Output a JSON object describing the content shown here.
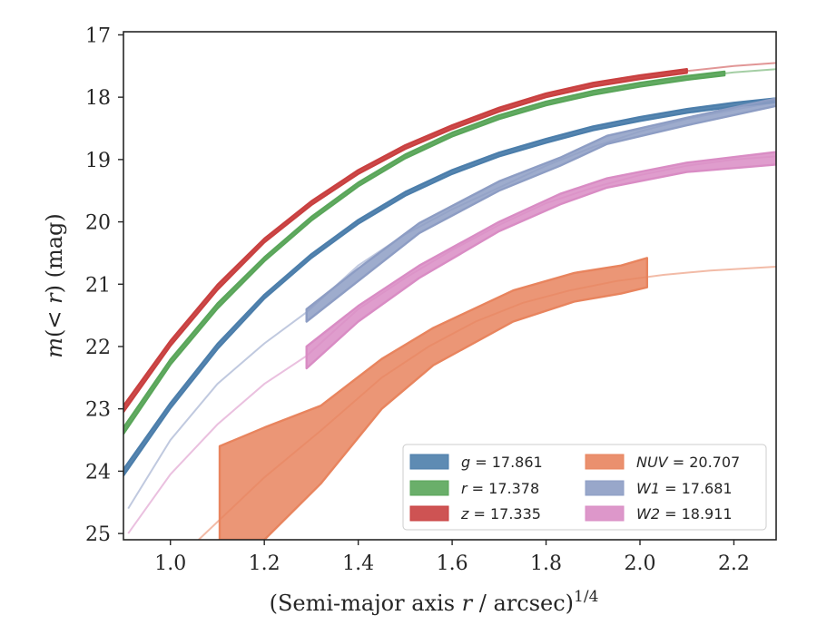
{
  "chart_data": {
    "type": "line",
    "xlabel": "(Semi-major axis r / arcsec)",
    "xlabel_exponent": "1/4",
    "ylabel": "m(<r) (mag)",
    "xlim": [
      0.9,
      2.29
    ],
    "ylim": [
      25.1,
      16.95
    ],
    "y_inverted": true,
    "grid": false,
    "legend_position": "lower-right",
    "x_ticks": [
      "1.0",
      "1.2",
      "1.4",
      "1.6",
      "1.8",
      "2.0",
      "2.2"
    ],
    "x_tick_values": [
      1.0,
      1.2,
      1.4,
      1.6,
      1.8,
      2.0,
      2.2
    ],
    "y_ticks": [
      "17",
      "18",
      "19",
      "20",
      "21",
      "22",
      "23",
      "24",
      "25"
    ],
    "y_tick_values": [
      17,
      18,
      19,
      20,
      21,
      22,
      23,
      24,
      25
    ],
    "series": [
      {
        "name": "g = 17.861",
        "symbol": "g",
        "value": "17.861",
        "color": "#4c7eab",
        "fit_x": [
          0.9,
          1.0,
          1.1,
          1.2,
          1.3,
          1.4,
          1.5,
          1.6,
          1.7,
          1.8,
          1.9,
          2.0,
          2.1,
          2.2,
          2.29
        ],
        "fit_y": [
          24.02,
          22.95,
          22.0,
          21.2,
          20.55,
          20.0,
          19.55,
          19.2,
          18.92,
          18.7,
          18.5,
          18.35,
          18.22,
          18.12,
          18.05
        ],
        "band": [
          {
            "x": 0.9,
            "lo": 23.97,
            "hi": 24.07
          },
          {
            "x": 1.0,
            "lo": 22.91,
            "hi": 22.99
          },
          {
            "x": 1.1,
            "lo": 21.96,
            "hi": 22.04
          },
          {
            "x": 1.2,
            "lo": 21.17,
            "hi": 21.23
          },
          {
            "x": 1.3,
            "lo": 20.52,
            "hi": 20.58
          },
          {
            "x": 1.4,
            "lo": 19.97,
            "hi": 20.03
          },
          {
            "x": 1.5,
            "lo": 19.52,
            "hi": 19.58
          },
          {
            "x": 1.6,
            "lo": 19.17,
            "hi": 19.23
          },
          {
            "x": 1.7,
            "lo": 18.89,
            "hi": 18.95
          },
          {
            "x": 1.8,
            "lo": 18.67,
            "hi": 18.73
          },
          {
            "x": 1.9,
            "lo": 18.47,
            "hi": 18.53
          },
          {
            "x": 2.0,
            "lo": 18.32,
            "hi": 18.38
          },
          {
            "x": 2.1,
            "lo": 18.19,
            "hi": 18.25
          },
          {
            "x": 2.2,
            "lo": 18.09,
            "hi": 18.15
          },
          {
            "x": 2.29,
            "lo": 18.02,
            "hi": 18.08
          }
        ]
      },
      {
        "name": "r = 17.378",
        "symbol": "r",
        "value": "17.378",
        "color": "#5aa65a",
        "fit_x": [
          0.9,
          1.0,
          1.1,
          1.2,
          1.3,
          1.4,
          1.5,
          1.6,
          1.7,
          1.8,
          1.9,
          2.0,
          2.1,
          2.2,
          2.29
        ],
        "fit_y": [
          23.35,
          22.25,
          21.35,
          20.6,
          19.95,
          19.4,
          18.95,
          18.6,
          18.32,
          18.1,
          17.93,
          17.8,
          17.69,
          17.6,
          17.55
        ],
        "band": [
          {
            "x": 0.9,
            "lo": 23.3,
            "hi": 23.4
          },
          {
            "x": 1.0,
            "lo": 22.21,
            "hi": 22.29
          },
          {
            "x": 1.1,
            "lo": 21.31,
            "hi": 21.39
          },
          {
            "x": 1.2,
            "lo": 20.57,
            "hi": 20.63
          },
          {
            "x": 1.3,
            "lo": 19.92,
            "hi": 19.98
          },
          {
            "x": 1.4,
            "lo": 19.37,
            "hi": 19.43
          },
          {
            "x": 1.5,
            "lo": 18.92,
            "hi": 18.98
          },
          {
            "x": 1.6,
            "lo": 18.57,
            "hi": 18.63
          },
          {
            "x": 1.7,
            "lo": 18.29,
            "hi": 18.35
          },
          {
            "x": 1.8,
            "lo": 18.07,
            "hi": 18.13
          },
          {
            "x": 1.9,
            "lo": 17.9,
            "hi": 17.96
          },
          {
            "x": 2.0,
            "lo": 17.77,
            "hi": 17.83
          },
          {
            "x": 2.1,
            "lo": 17.66,
            "hi": 17.72
          },
          {
            "x": 2.18,
            "lo": 17.59,
            "hi": 17.65
          }
        ]
      },
      {
        "name": "z = 17.335",
        "symbol": "z",
        "value": "17.335",
        "color": "#c94040",
        "fit_x": [
          0.9,
          1.0,
          1.1,
          1.2,
          1.3,
          1.4,
          1.5,
          1.6,
          1.7,
          1.8,
          1.9,
          2.0,
          2.1,
          2.2,
          2.29
        ],
        "fit_y": [
          23.0,
          21.95,
          21.05,
          20.3,
          19.7,
          19.2,
          18.8,
          18.48,
          18.2,
          17.97,
          17.8,
          17.68,
          17.58,
          17.5,
          17.45
        ],
        "band": [
          {
            "x": 0.9,
            "lo": 22.95,
            "hi": 23.05
          },
          {
            "x": 1.0,
            "lo": 21.91,
            "hi": 21.99
          },
          {
            "x": 1.1,
            "lo": 21.01,
            "hi": 21.09
          },
          {
            "x": 1.2,
            "lo": 20.27,
            "hi": 20.33
          },
          {
            "x": 1.3,
            "lo": 19.67,
            "hi": 19.73
          },
          {
            "x": 1.4,
            "lo": 19.17,
            "hi": 19.23
          },
          {
            "x": 1.5,
            "lo": 18.77,
            "hi": 18.83
          },
          {
            "x": 1.6,
            "lo": 18.45,
            "hi": 18.51
          },
          {
            "x": 1.7,
            "lo": 18.17,
            "hi": 18.23
          },
          {
            "x": 1.8,
            "lo": 17.94,
            "hi": 18.0
          },
          {
            "x": 1.9,
            "lo": 17.77,
            "hi": 17.83
          },
          {
            "x": 2.0,
            "lo": 17.65,
            "hi": 17.71
          },
          {
            "x": 2.1,
            "lo": 17.55,
            "hi": 17.61
          }
        ]
      },
      {
        "name": "NUV = 20.707",
        "symbol": "NUV",
        "value": "20.707",
        "color": "#e8845e",
        "fit_x": [
          1.06,
          1.2,
          1.32,
          1.45,
          1.55,
          1.65,
          1.75,
          1.85,
          1.95,
          2.05,
          2.15,
          2.29
        ],
        "fit_y": [
          25.1,
          24.1,
          23.35,
          22.5,
          22.0,
          21.6,
          21.3,
          21.1,
          20.95,
          20.85,
          20.78,
          20.72
        ],
        "band": [
          {
            "x": 1.105,
            "lo": 23.6,
            "hi": 25.1
          },
          {
            "x": 1.2,
            "lo": 23.3,
            "hi": 25.1
          },
          {
            "x": 1.32,
            "lo": 22.95,
            "hi": 24.2
          },
          {
            "x": 1.45,
            "lo": 22.2,
            "hi": 23.0
          },
          {
            "x": 1.56,
            "lo": 21.7,
            "hi": 22.3
          },
          {
            "x": 1.73,
            "lo": 21.1,
            "hi": 21.6
          },
          {
            "x": 1.86,
            "lo": 20.82,
            "hi": 21.28
          },
          {
            "x": 1.96,
            "lo": 20.7,
            "hi": 21.15
          },
          {
            "x": 2.015,
            "lo": 20.58,
            "hi": 21.05
          }
        ]
      },
      {
        "name": "W1 = 17.681",
        "symbol": "W1",
        "value": "17.681",
        "color": "#8d9dc4",
        "fit_x": [
          0.91,
          1.0,
          1.1,
          1.2,
          1.29,
          1.4,
          1.5,
          1.6,
          1.7,
          1.8,
          1.9,
          2.0,
          2.1,
          2.2,
          2.29
        ],
        "fit_y": [
          24.6,
          23.5,
          22.6,
          21.95,
          21.45,
          20.7,
          20.2,
          19.8,
          19.45,
          19.1,
          18.8,
          18.55,
          18.35,
          18.2,
          18.08
        ],
        "band": [
          {
            "x": 1.29,
            "lo": 21.4,
            "hi": 21.6
          },
          {
            "x": 1.4,
            "lo": 20.75,
            "hi": 20.95
          },
          {
            "x": 1.53,
            "lo": 20.02,
            "hi": 20.18
          },
          {
            "x": 1.7,
            "lo": 19.35,
            "hi": 19.5
          },
          {
            "x": 1.83,
            "lo": 18.97,
            "hi": 19.1
          },
          {
            "x": 1.93,
            "lo": 18.62,
            "hi": 18.75
          },
          {
            "x": 2.1,
            "lo": 18.33,
            "hi": 18.45
          },
          {
            "x": 2.29,
            "lo": 18.02,
            "hi": 18.14
          }
        ]
      },
      {
        "name": "W2 = 18.911",
        "symbol": "W2",
        "value": "18.911",
        "color": "#d98cc4",
        "fit_x": [
          0.91,
          1.0,
          1.1,
          1.2,
          1.29,
          1.4,
          1.5,
          1.6,
          1.7,
          1.8,
          1.9,
          2.0,
          2.1,
          2.2,
          2.29
        ],
        "fit_y": [
          25.0,
          24.05,
          23.25,
          22.6,
          22.15,
          21.4,
          20.9,
          20.45,
          20.05,
          19.7,
          19.45,
          19.25,
          19.1,
          19.0,
          18.95
        ],
        "band": [
          {
            "x": 1.29,
            "lo": 22.0,
            "hi": 22.35
          },
          {
            "x": 1.4,
            "lo": 21.35,
            "hi": 21.6
          },
          {
            "x": 1.53,
            "lo": 20.7,
            "hi": 20.9
          },
          {
            "x": 1.7,
            "lo": 20.0,
            "hi": 20.15
          },
          {
            "x": 1.83,
            "lo": 19.55,
            "hi": 19.72
          },
          {
            "x": 1.93,
            "lo": 19.3,
            "hi": 19.45
          },
          {
            "x": 2.1,
            "lo": 19.05,
            "hi": 19.2
          },
          {
            "x": 2.29,
            "lo": 18.88,
            "hi": 19.08
          }
        ]
      }
    ]
  }
}
